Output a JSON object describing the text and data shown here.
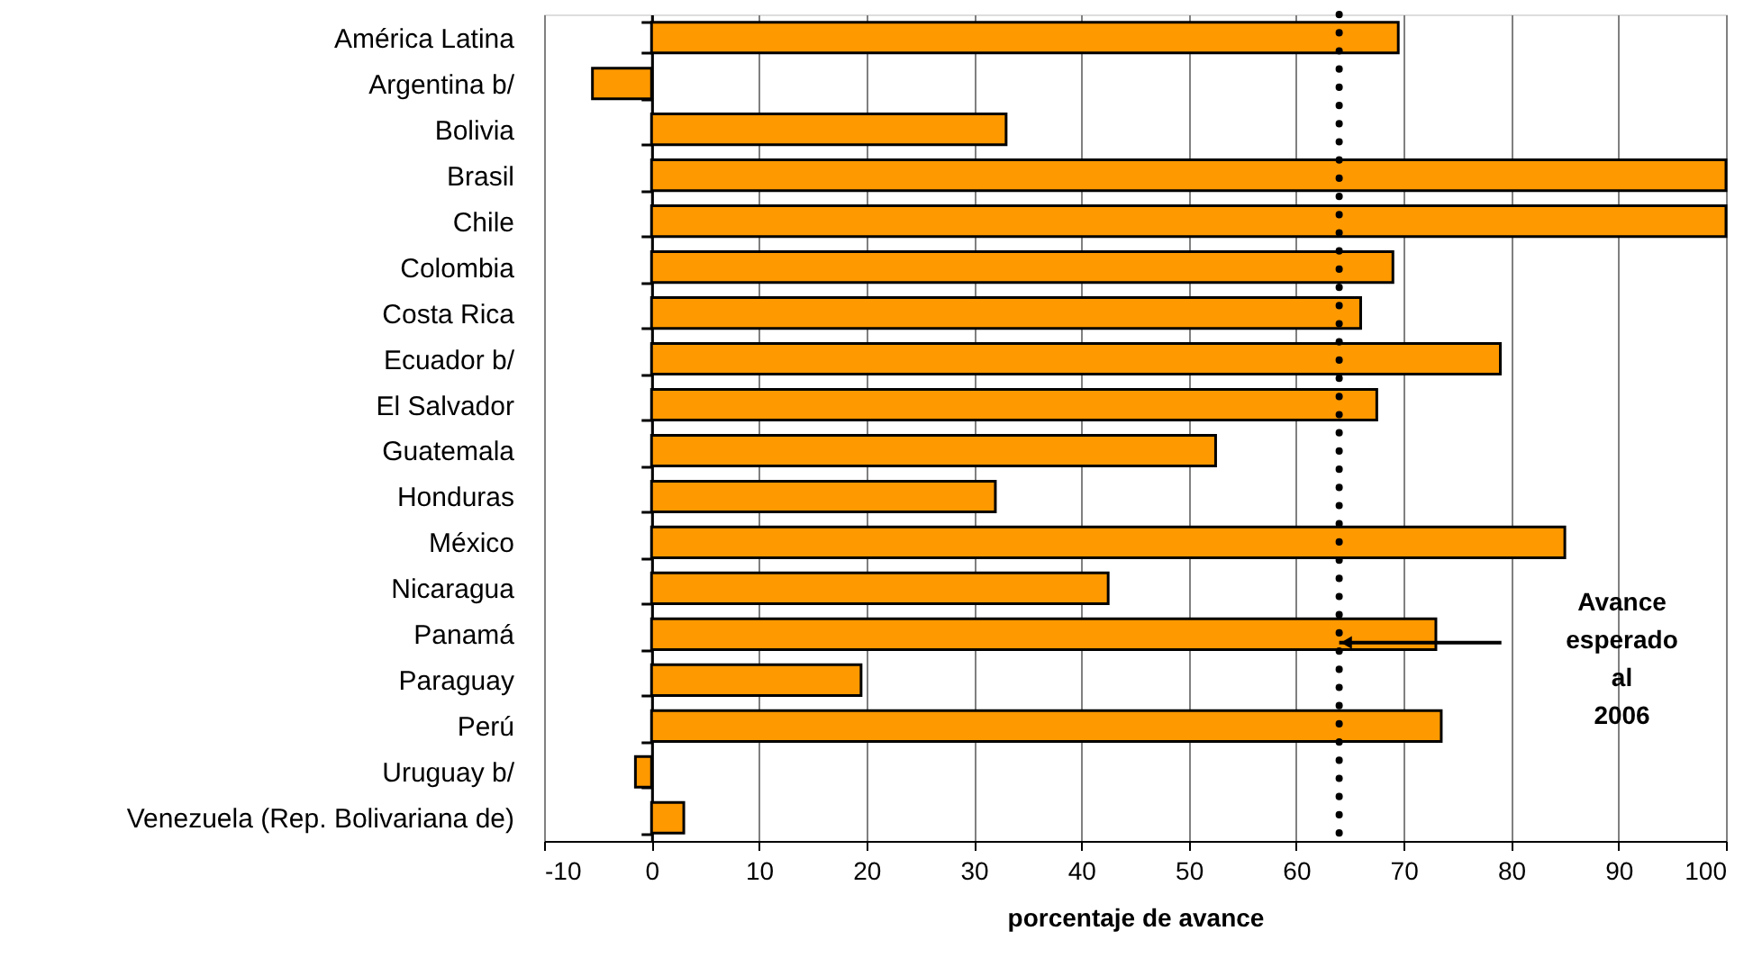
{
  "chart_data": {
    "type": "bar",
    "orientation": "horizontal",
    "categories": [
      "América Latina",
      "Argentina b/",
      "Bolivia",
      "Brasil",
      "Chile",
      "Colombia",
      "Costa Rica",
      "Ecuador b/",
      "El Salvador",
      "Guatemala",
      "Honduras",
      "México",
      "Nicaragua",
      "Panamá",
      "Paraguay",
      "Perú",
      "Uruguay b/",
      "Venezuela (Rep. Bolivariana de)"
    ],
    "values": [
      69.5,
      -5.5,
      33,
      100,
      100,
      69,
      66,
      79,
      67.5,
      52.5,
      32,
      85,
      42.5,
      73,
      19.5,
      73.5,
      -1.5,
      3
    ],
    "color": "#ff9900",
    "xlim": [
      -10,
      100
    ],
    "xticks": [
      -10,
      0,
      10,
      20,
      30,
      40,
      50,
      60,
      70,
      80,
      90,
      100
    ],
    "xlabel": "porcentaje de avance",
    "grid": "x",
    "ref_lines": [
      {
        "axis": "x",
        "value": 64,
        "line_style": "dotted",
        "color": "#000000"
      }
    ],
    "annotations": [
      "Avance esperado al 2006"
    ]
  }
}
